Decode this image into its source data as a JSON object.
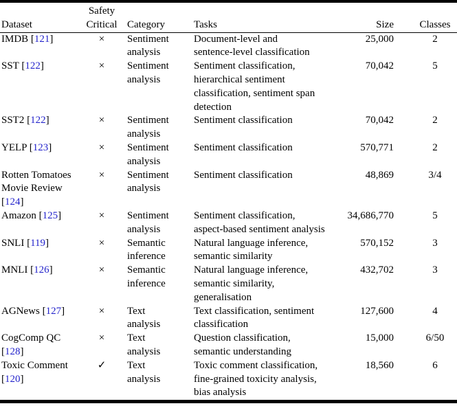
{
  "colors": {
    "background": "#ffffff",
    "text": "#000000",
    "citation_link": "#2323cb",
    "rule": "#000000"
  },
  "table": {
    "headers": {
      "dataset": "Dataset",
      "safety_critical_line1": "Safety",
      "safety_critical_line2": "Critical",
      "category": "Category",
      "tasks": "Tasks",
      "size": "Size",
      "classes": "Classes"
    },
    "rows": [
      {
        "dataset_lines": [
          [
            {
              "text": "IMDB ["
            },
            {
              "text": "121",
              "cite": true
            },
            {
              "text": "]"
            }
          ]
        ],
        "safety_critical": "×",
        "category_lines": [
          "Sentiment",
          "analysis"
        ],
        "task_lines": [
          "Document-level and",
          "sentence-level classification"
        ],
        "size": "25,000",
        "classes": "2"
      },
      {
        "dataset_lines": [
          [
            {
              "text": "SST ["
            },
            {
              "text": "122",
              "cite": true
            },
            {
              "text": "]"
            }
          ]
        ],
        "safety_critical": "×",
        "category_lines": [
          "Sentiment",
          "analysis"
        ],
        "task_lines": [
          "Sentiment classification,",
          "hierarchical sentiment",
          "classification, sentiment span",
          "detection"
        ],
        "size": "70,042",
        "classes": "5"
      },
      {
        "dataset_lines": [
          [
            {
              "text": "SST2 ["
            },
            {
              "text": "122",
              "cite": true
            },
            {
              "text": "]"
            }
          ]
        ],
        "safety_critical": "×",
        "category_lines": [
          "Sentiment",
          "analysis"
        ],
        "task_lines": [
          "Sentiment classification"
        ],
        "size": "70,042",
        "classes": "2"
      },
      {
        "dataset_lines": [
          [
            {
              "text": "YELP ["
            },
            {
              "text": "123",
              "cite": true
            },
            {
              "text": "]"
            }
          ]
        ],
        "safety_critical": "×",
        "category_lines": [
          "Sentiment",
          "analysis"
        ],
        "task_lines": [
          "Sentiment classification"
        ],
        "size": "570,771",
        "classes": "2"
      },
      {
        "dataset_lines": [
          [
            {
              "text": "Rotten Tomatoes"
            }
          ],
          [
            {
              "text": "Movie Review"
            }
          ],
          [
            {
              "text": "["
            },
            {
              "text": "124",
              "cite": true
            },
            {
              "text": "]"
            }
          ]
        ],
        "safety_critical": "×",
        "category_lines": [
          "Sentiment",
          "analysis"
        ],
        "task_lines": [
          "Sentiment classification"
        ],
        "size": "48,869",
        "classes": "3/4"
      },
      {
        "dataset_lines": [
          [
            {
              "text": "Amazon ["
            },
            {
              "text": "125",
              "cite": true
            },
            {
              "text": "]"
            }
          ]
        ],
        "safety_critical": "×",
        "category_lines": [
          "Sentiment",
          "analysis"
        ],
        "task_lines": [
          "Sentiment classification,",
          "aspect-based sentiment analysis"
        ],
        "size": "34,686,770",
        "classes": "5"
      },
      {
        "dataset_lines": [
          [
            {
              "text": "SNLI ["
            },
            {
              "text": "119",
              "cite": true
            },
            {
              "text": "]"
            }
          ]
        ],
        "safety_critical": "×",
        "category_lines": [
          "Semantic",
          "inference"
        ],
        "task_lines": [
          "Natural language inference,",
          "semantic similarity"
        ],
        "size": "570,152",
        "classes": "3"
      },
      {
        "dataset_lines": [
          [
            {
              "text": "MNLI ["
            },
            {
              "text": "126",
              "cite": true
            },
            {
              "text": "]"
            }
          ]
        ],
        "safety_critical": "×",
        "category_lines": [
          "Semantic",
          "inference"
        ],
        "task_lines": [
          "Natural language inference,",
          "semantic similarity,",
          "generalisation"
        ],
        "size": "432,702",
        "classes": "3"
      },
      {
        "dataset_lines": [
          [
            {
              "text": "AGNews ["
            },
            {
              "text": "127",
              "cite": true
            },
            {
              "text": "]"
            }
          ]
        ],
        "safety_critical": "×",
        "category_lines": [
          "Text",
          "analysis"
        ],
        "task_lines": [
          "Text classification, sentiment",
          "classification"
        ],
        "size": "127,600",
        "classes": "4"
      },
      {
        "dataset_lines": [
          [
            {
              "text": "CogComp QC"
            }
          ],
          [
            {
              "text": "["
            },
            {
              "text": "128",
              "cite": true
            },
            {
              "text": "]"
            }
          ]
        ],
        "safety_critical": "×",
        "category_lines": [
          "Text",
          "analysis"
        ],
        "task_lines": [
          "Question classification,",
          "semantic understanding"
        ],
        "size": "15,000",
        "classes": "6/50"
      },
      {
        "dataset_lines": [
          [
            {
              "text": "Toxic Comment"
            }
          ],
          [
            {
              "text": "["
            },
            {
              "text": "120",
              "cite": true
            },
            {
              "text": "]"
            }
          ]
        ],
        "safety_critical": "✓",
        "category_lines": [
          "Text",
          "analysis"
        ],
        "task_lines": [
          "Toxic comment classification,",
          "fine-grained toxicity analysis,",
          "bias analysis"
        ],
        "size": "18,560",
        "classes": "6"
      }
    ]
  }
}
